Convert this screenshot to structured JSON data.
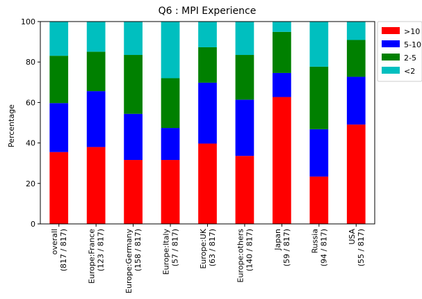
{
  "chart_data": {
    "type": "bar",
    "stacked": true,
    "title": "Q6 : MPI Experience",
    "ylabel": "Percentage",
    "xlabel": "",
    "ylim": [
      0,
      100
    ],
    "yticks": [
      0,
      20,
      40,
      60,
      80,
      100
    ],
    "grid": false,
    "legend_position": "outside-top-right",
    "categories": [
      [
        "overall",
        "(817 / 817)"
      ],
      [
        "Europe:France",
        "(123 / 817)"
      ],
      [
        "Europe:Germany",
        "(158 / 817)"
      ],
      [
        "Europe:Italy",
        "(57 / 817)"
      ],
      [
        "Europe:UK",
        "(63 / 817)"
      ],
      [
        "Europe:others",
        "(140 / 817)"
      ],
      [
        "Japan",
        "(59 / 817)"
      ],
      [
        "Russia",
        "(94 / 817)"
      ],
      [
        "USA",
        "(55 / 817)"
      ]
    ],
    "series": [
      {
        "name": ">10",
        "color": "#ff0000",
        "values": [
          35.5,
          38.0,
          31.6,
          31.6,
          39.7,
          33.6,
          62.7,
          23.4,
          49.1
        ]
      },
      {
        "name": "5-10",
        "color": "#0000ff",
        "values": [
          24.2,
          27.6,
          22.8,
          15.8,
          30.1,
          27.8,
          11.9,
          23.4,
          23.6
        ]
      },
      {
        "name": "2-5",
        "color": "#008000",
        "values": [
          23.4,
          19.5,
          29.1,
          24.6,
          17.5,
          22.1,
          20.3,
          30.9,
          18.2
        ]
      },
      {
        "name": "<2",
        "color": "#00bfbf",
        "values": [
          16.9,
          14.9,
          16.5,
          28.0,
          12.7,
          16.5,
          5.1,
          22.3,
          9.1
        ]
      }
    ]
  }
}
